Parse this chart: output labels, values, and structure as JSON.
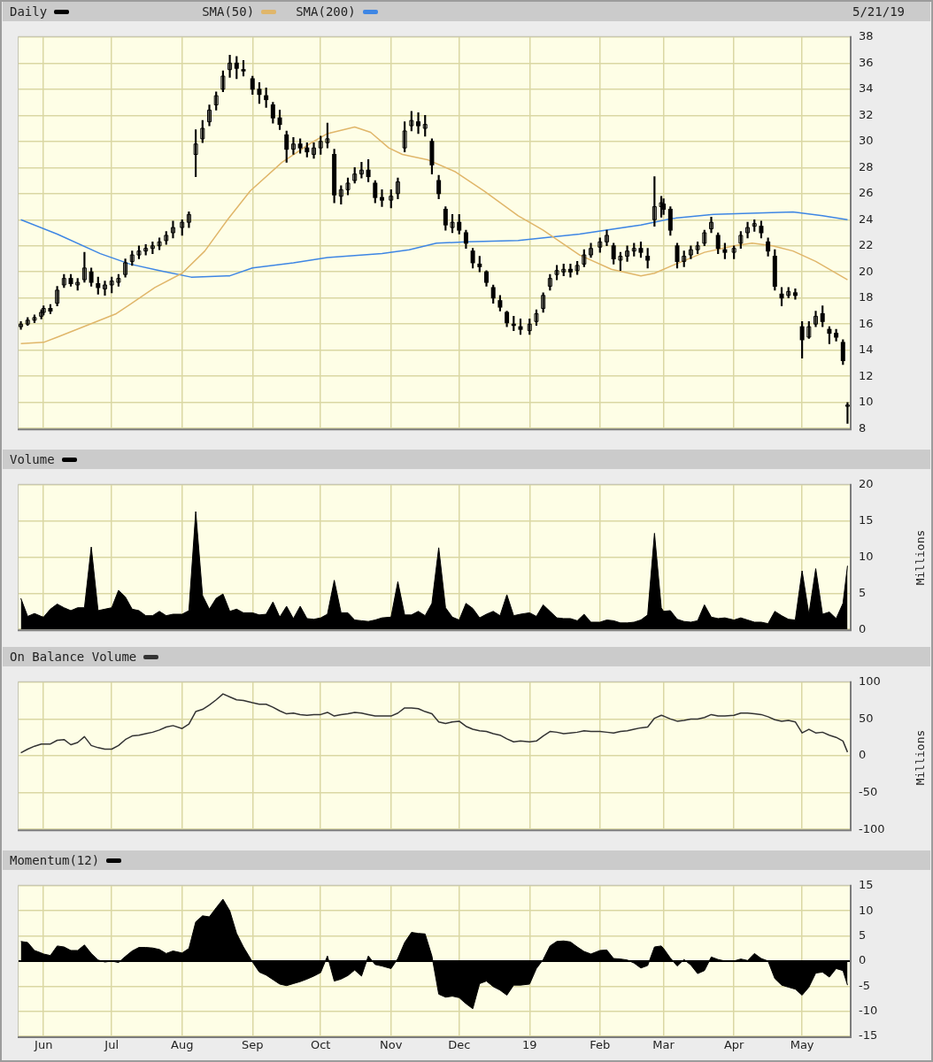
{
  "chart_data": [
    {
      "type": "candlestick",
      "legend": "top left",
      "grid": true,
      "tick_labels": "y",
      "annotations": [
        "5/21/19"
      ],
      "xlim": [
        "2018-05-21",
        "2019-05-22"
      ],
      "xticks": [
        {
          "value": "2018-06-01",
          "label": null
        },
        {
          "value": "2018-07-01",
          "label": null
        },
        {
          "value": "2018-08-01",
          "label": null
        },
        {
          "value": "2018-09-01",
          "label": null
        },
        {
          "value": "2018-10-01",
          "label": null
        },
        {
          "value": "2018-11-01",
          "label": null
        },
        {
          "value": "2018-12-01",
          "label": null
        },
        {
          "value": "2019-01-01",
          "label": null
        },
        {
          "value": "2019-02-01",
          "label": null
        },
        {
          "value": "2019-03-01",
          "label": null
        },
        {
          "value": "2019-04-01",
          "label": null
        },
        {
          "value": "2019-05-01",
          "label": null
        }
      ],
      "ylim": [
        8,
        38
      ],
      "yticks": [
        8,
        10,
        12,
        14,
        16,
        18,
        20,
        22,
        24,
        26,
        28,
        30,
        32,
        34,
        36,
        38
      ],
      "x": [
        "2018-05-22",
        "2018-05-25",
        "2018-05-28",
        "2018-05-31",
        "2018-06-01",
        "2018-06-04",
        "2018-06-07",
        "2018-06-10",
        "2018-06-13",
        "2018-06-16",
        "2018-06-19",
        "2018-06-22",
        "2018-06-25",
        "2018-06-28",
        "2018-07-01",
        "2018-07-04",
        "2018-07-07",
        "2018-07-10",
        "2018-07-13",
        "2018-07-16",
        "2018-07-19",
        "2018-07-22",
        "2018-07-25",
        "2018-07-28",
        "2018-08-01",
        "2018-08-04",
        "2018-08-07",
        "2018-08-10",
        "2018-08-13",
        "2018-08-16",
        "2018-08-19",
        "2018-08-22",
        "2018-08-25",
        "2018-08-28",
        "2018-09-01",
        "2018-09-04",
        "2018-09-07",
        "2018-09-10",
        "2018-09-13",
        "2018-09-16",
        "2018-09-19",
        "2018-09-22",
        "2018-09-25",
        "2018-09-28",
        "2018-10-01",
        "2018-10-04",
        "2018-10-07",
        "2018-10-10",
        "2018-10-13",
        "2018-10-16",
        "2018-10-19",
        "2018-10-22",
        "2018-10-25",
        "2018-10-28",
        "2018-11-01",
        "2018-11-04",
        "2018-11-07",
        "2018-11-10",
        "2018-11-13",
        "2018-11-16",
        "2018-11-19",
        "2018-11-22",
        "2018-11-25",
        "2018-11-28",
        "2018-12-01",
        "2018-12-04",
        "2018-12-07",
        "2018-12-10",
        "2018-12-13",
        "2018-12-16",
        "2018-12-19",
        "2018-12-22",
        "2018-12-25",
        "2018-12-28",
        "2019-01-01",
        "2019-01-04",
        "2019-01-07",
        "2019-01-10",
        "2019-01-13",
        "2019-01-16",
        "2019-01-19",
        "2019-01-22",
        "2019-01-25",
        "2019-01-28",
        "2019-02-01",
        "2019-02-04",
        "2019-02-07",
        "2019-02-10",
        "2019-02-13",
        "2019-02-16",
        "2019-02-19",
        "2019-02-22",
        "2019-02-25",
        "2019-02-28",
        "2019-03-01",
        "2019-03-04",
        "2019-03-07",
        "2019-03-10",
        "2019-03-13",
        "2019-03-16",
        "2019-03-19",
        "2019-03-22",
        "2019-03-25",
        "2019-03-28",
        "2019-04-01",
        "2019-04-04",
        "2019-04-07",
        "2019-04-10",
        "2019-04-13",
        "2019-04-16",
        "2019-04-19",
        "2019-04-22",
        "2019-04-25",
        "2019-04-28",
        "2019-05-01",
        "2019-05-04",
        "2019-05-07",
        "2019-05-10",
        "2019-05-13",
        "2019-05-16",
        "2019-05-19",
        "2019-05-21"
      ],
      "series": [
        {
          "name": "Daily",
          "color": "#000000",
          "ohlc": [
            [
              15.8,
              16.2,
              15.6,
              16.0
            ],
            [
              16.0,
              16.5,
              15.9,
              16.3
            ],
            [
              16.3,
              16.7,
              16.1,
              16.5
            ],
            [
              16.6,
              17.1,
              16.4,
              16.9
            ],
            [
              16.9,
              17.4,
              16.7,
              17.2
            ],
            [
              17.2,
              17.5,
              16.8,
              17.0
            ],
            [
              17.6,
              18.9,
              17.4,
              18.6
            ],
            [
              19.0,
              19.8,
              18.8,
              19.5
            ],
            [
              19.5,
              19.8,
              18.9,
              19.1
            ],
            [
              19.0,
              19.5,
              18.6,
              19.2
            ],
            [
              19.4,
              21.5,
              19.2,
              20.3
            ],
            [
              20.0,
              20.3,
              18.9,
              19.2
            ],
            [
              19.1,
              19.6,
              18.3,
              18.8
            ],
            [
              18.7,
              19.3,
              18.2,
              19.0
            ],
            [
              19.0,
              19.6,
              18.4,
              19.3
            ],
            [
              19.2,
              19.8,
              18.9,
              19.5
            ],
            [
              19.8,
              21.0,
              19.6,
              20.7
            ],
            [
              20.8,
              21.6,
              20.5,
              21.3
            ],
            [
              21.3,
              22.0,
              21.0,
              21.6
            ],
            [
              21.6,
              22.1,
              21.3,
              21.8
            ],
            [
              21.8,
              22.3,
              21.4,
              22.0
            ],
            [
              22.0,
              22.6,
              21.7,
              22.3
            ],
            [
              22.4,
              23.1,
              22.1,
              22.8
            ],
            [
              23.0,
              23.9,
              22.6,
              23.4
            ],
            [
              23.4,
              24.0,
              22.8,
              23.8
            ],
            [
              23.8,
              24.6,
              23.4,
              24.4
            ],
            [
              29.0,
              30.9,
              27.3,
              29.8
            ],
            [
              30.2,
              31.6,
              29.9,
              31.0
            ],
            [
              31.5,
              32.8,
              31.2,
              32.4
            ],
            [
              32.8,
              33.8,
              32.4,
              33.5
            ],
            [
              34.0,
              35.4,
              33.8,
              35.0
            ],
            [
              35.5,
              36.6,
              34.9,
              36.0
            ],
            [
              36.0,
              36.5,
              34.8,
              35.6
            ],
            [
              35.5,
              36.2,
              35.0,
              35.4
            ],
            [
              34.8,
              35.0,
              33.6,
              34.0
            ],
            [
              34.0,
              34.5,
              32.9,
              33.6
            ],
            [
              33.5,
              34.1,
              32.6,
              33.2
            ],
            [
              32.8,
              33.0,
              31.4,
              31.8
            ],
            [
              31.8,
              32.4,
              30.9,
              31.3
            ],
            [
              30.5,
              30.8,
              28.4,
              29.4
            ],
            [
              29.4,
              30.3,
              29.0,
              29.8
            ],
            [
              29.8,
              30.2,
              29.1,
              29.5
            ],
            [
              29.5,
              29.9,
              28.8,
              29.2
            ],
            [
              29.0,
              29.9,
              28.7,
              29.5
            ],
            [
              29.5,
              30.4,
              29.0,
              30.0
            ],
            [
              29.9,
              31.4,
              29.5,
              30.2
            ],
            [
              29.0,
              29.4,
              25.3,
              25.9
            ],
            [
              25.8,
              26.6,
              25.2,
              26.3
            ],
            [
              26.3,
              27.2,
              25.9,
              26.8
            ],
            [
              27.0,
              28.0,
              26.8,
              27.5
            ],
            [
              27.5,
              28.4,
              27.2,
              27.8
            ],
            [
              27.8,
              28.6,
              26.9,
              27.3
            ],
            [
              26.8,
              27.0,
              25.3,
              25.7
            ],
            [
              25.7,
              26.3,
              25.0,
              25.5
            ],
            [
              25.5,
              26.3,
              24.9,
              25.8
            ],
            [
              26.0,
              27.2,
              25.6,
              26.9
            ],
            [
              29.5,
              31.5,
              29.2,
              30.8
            ],
            [
              31.2,
              32.3,
              30.8,
              31.6
            ],
            [
              31.5,
              32.2,
              30.6,
              31.2
            ],
            [
              31.0,
              32.0,
              30.4,
              31.3
            ],
            [
              30.0,
              30.2,
              27.5,
              28.2
            ],
            [
              27.0,
              27.4,
              25.6,
              26.0
            ],
            [
              24.8,
              25.0,
              23.2,
              23.6
            ],
            [
              23.4,
              24.4,
              23.0,
              23.8
            ],
            [
              23.8,
              24.4,
              22.9,
              23.2
            ],
            [
              23.0,
              23.2,
              21.8,
              22.2
            ],
            [
              21.6,
              21.8,
              20.3,
              20.7
            ],
            [
              20.6,
              21.2,
              20.0,
              20.4
            ],
            [
              20.0,
              20.1,
              18.9,
              19.2
            ],
            [
              18.8,
              19.0,
              17.6,
              18.0
            ],
            [
              17.8,
              18.2,
              17.0,
              17.3
            ],
            [
              16.9,
              17.0,
              15.8,
              16.1
            ],
            [
              16.0,
              16.6,
              15.5,
              15.9
            ],
            [
              15.8,
              16.4,
              15.2,
              15.6
            ],
            [
              15.5,
              16.4,
              15.2,
              16.0
            ],
            [
              16.2,
              17.1,
              15.9,
              16.8
            ],
            [
              17.2,
              18.4,
              16.9,
              18.2
            ],
            [
              18.9,
              19.8,
              18.6,
              19.5
            ],
            [
              19.8,
              20.5,
              19.4,
              20.1
            ],
            [
              20.0,
              20.6,
              19.7,
              20.2
            ],
            [
              20.2,
              20.6,
              19.6,
              20.0
            ],
            [
              20.1,
              20.8,
              19.8,
              20.5
            ],
            [
              20.6,
              21.7,
              20.4,
              21.3
            ],
            [
              21.3,
              22.2,
              21.1,
              21.8
            ],
            [
              21.9,
              22.6,
              21.5,
              22.3
            ],
            [
              22.3,
              23.2,
              22.0,
              22.8
            ],
            [
              22.0,
              22.2,
              20.6,
              21.0
            ],
            [
              20.9,
              21.5,
              20.1,
              21.2
            ],
            [
              21.2,
              22.0,
              20.8,
              21.6
            ],
            [
              21.6,
              22.2,
              21.2,
              21.8
            ],
            [
              21.8,
              22.3,
              21.1,
              21.5
            ],
            [
              21.2,
              21.8,
              20.3,
              20.9
            ],
            [
              24.0,
              27.3,
              23.5,
              25.0
            ],
            [
              25.0,
              25.8,
              24.2,
              25.3
            ],
            [
              25.2,
              25.6,
              24.4,
              24.8
            ],
            [
              24.8,
              25.0,
              22.8,
              23.2
            ],
            [
              22.0,
              22.2,
              20.3,
              20.8
            ],
            [
              20.8,
              21.6,
              20.4,
              21.2
            ],
            [
              21.3,
              22.0,
              21.0,
              21.7
            ],
            [
              21.7,
              22.3,
              21.4,
              22.0
            ],
            [
              22.2,
              23.2,
              22.0,
              23.0
            ],
            [
              23.3,
              24.2,
              23.0,
              23.8
            ],
            [
              22.8,
              23.0,
              21.4,
              21.8
            ],
            [
              21.7,
              22.2,
              21.0,
              21.5
            ],
            [
              21.5,
              22.0,
              21.0,
              21.8
            ],
            [
              22.2,
              23.1,
              21.8,
              22.8
            ],
            [
              23.0,
              23.8,
              22.6,
              23.4
            ],
            [
              23.5,
              24.0,
              23.1,
              23.7
            ],
            [
              23.5,
              23.9,
              22.6,
              23.0
            ],
            [
              22.3,
              22.6,
              21.2,
              21.6
            ],
            [
              21.2,
              21.7,
              18.6,
              18.9
            ],
            [
              18.3,
              18.8,
              17.4,
              18.0
            ],
            [
              18.2,
              18.8,
              18.0,
              18.5
            ],
            [
              18.4,
              18.7,
              17.9,
              18.2
            ],
            [
              15.8,
              16.2,
              13.4,
              14.8
            ],
            [
              15.0,
              16.2,
              14.9,
              15.8
            ],
            [
              16.0,
              17.0,
              15.8,
              16.6
            ],
            [
              16.8,
              17.4,
              15.8,
              16.2
            ],
            [
              15.6,
              15.8,
              14.5,
              15.3
            ],
            [
              15.3,
              15.6,
              14.7,
              15.0
            ],
            [
              14.6,
              14.8,
              12.9,
              13.2
            ],
            [
              9.7,
              10.0,
              8.4,
              9.8
            ]
          ]
        },
        {
          "name": "SMA(50)",
          "type": "line",
          "color": "#e0b66a",
          "x": [
            "2018-05-22",
            "2018-06-01",
            "2018-06-07",
            "2018-06-20",
            "2018-07-03",
            "2018-07-09",
            "2018-07-20",
            "2018-08-01",
            "2018-08-11",
            "2018-08-21",
            "2018-08-31",
            "2018-09-14",
            "2018-09-27",
            "2018-10-04",
            "2018-10-16",
            "2018-10-23",
            "2018-10-31",
            "2018-11-06",
            "2018-11-17",
            "2018-11-29",
            "2018-12-12",
            "2018-12-27",
            "2019-01-07",
            "2019-01-23",
            "2019-02-06",
            "2019-02-19",
            "2019-02-25",
            "2019-03-05",
            "2019-03-19",
            "2019-04-01",
            "2019-04-09",
            "2019-04-18",
            "2019-04-27",
            "2019-05-07",
            "2019-05-21"
          ],
          "values": [
            14.5,
            14.6,
            15.0,
            15.9,
            16.8,
            17.5,
            18.8,
            19.9,
            21.6,
            24.0,
            26.2,
            28.4,
            29.9,
            30.6,
            31.1,
            30.7,
            29.5,
            29.0,
            28.6,
            27.7,
            26.2,
            24.3,
            23.2,
            21.3,
            20.2,
            19.7,
            19.9,
            20.5,
            21.5,
            22.0,
            22.2,
            22.0,
            21.6,
            20.8,
            19.4
          ]
        },
        {
          "name": "SMA(200)",
          "type": "line",
          "color": "#3e86e4",
          "x": [
            "2018-05-22",
            "2018-06-07",
            "2018-06-26",
            "2018-07-09",
            "2018-07-22",
            "2018-08-05",
            "2018-08-22",
            "2018-09-01",
            "2018-09-19",
            "2018-10-04",
            "2018-10-28",
            "2018-11-09",
            "2018-11-21",
            "2018-12-04",
            "2018-12-27",
            "2019-01-23",
            "2019-02-19",
            "2019-03-05",
            "2019-03-23",
            "2019-04-08",
            "2019-04-27",
            "2019-05-10",
            "2019-05-21"
          ],
          "values": [
            24.0,
            22.9,
            21.4,
            20.6,
            20.1,
            19.6,
            19.7,
            20.3,
            20.7,
            21.1,
            21.4,
            21.7,
            22.2,
            22.3,
            22.4,
            22.9,
            23.6,
            24.1,
            24.4,
            24.5,
            24.6,
            24.3,
            24.0
          ]
        }
      ]
    },
    {
      "type": "area",
      "legend": "top left",
      "grid": true,
      "tick_labels": "y",
      "ylabel": "Millions",
      "xlim": [
        "2018-05-21",
        "2019-05-22"
      ],
      "xticks": [
        {
          "value": "2018-06-01",
          "label": null
        },
        {
          "value": "2018-07-01",
          "label": null
        },
        {
          "value": "2018-08-01",
          "label": null
        },
        {
          "value": "2018-09-01",
          "label": null
        },
        {
          "value": "2018-10-01",
          "label": null
        },
        {
          "value": "2018-11-01",
          "label": null
        },
        {
          "value": "2018-12-01",
          "label": null
        },
        {
          "value": "2019-01-01",
          "label": null
        },
        {
          "value": "2019-02-01",
          "label": null
        },
        {
          "value": "2019-03-01",
          "label": null
        },
        {
          "value": "2019-04-01",
          "label": null
        },
        {
          "value": "2019-05-01",
          "label": null
        }
      ],
      "ylim": [
        0,
        20
      ],
      "yticks": [
        0,
        5,
        10,
        15,
        20
      ],
      "x": [
        "2018-05-22",
        "2018-05-25",
        "2018-05-28",
        "2018-05-31",
        "2018-06-01",
        "2018-06-04",
        "2018-06-07",
        "2018-06-10",
        "2018-06-13",
        "2018-06-16",
        "2018-06-19",
        "2018-06-22",
        "2018-06-25",
        "2018-06-28",
        "2018-07-01",
        "2018-07-04",
        "2018-07-07",
        "2018-07-10",
        "2018-07-13",
        "2018-07-16",
        "2018-07-19",
        "2018-07-22",
        "2018-07-25",
        "2018-07-28",
        "2018-08-01",
        "2018-08-04",
        "2018-08-07",
        "2018-08-10",
        "2018-08-13",
        "2018-08-16",
        "2018-08-19",
        "2018-08-22",
        "2018-08-25",
        "2018-08-28",
        "2018-09-01",
        "2018-09-04",
        "2018-09-07",
        "2018-09-10",
        "2018-09-13",
        "2018-09-16",
        "2018-09-19",
        "2018-09-22",
        "2018-09-25",
        "2018-09-28",
        "2018-10-01",
        "2018-10-04",
        "2018-10-07",
        "2018-10-10",
        "2018-10-13",
        "2018-10-16",
        "2018-10-19",
        "2018-10-22",
        "2018-10-25",
        "2018-10-28",
        "2018-11-01",
        "2018-11-04",
        "2018-11-07",
        "2018-11-10",
        "2018-11-13",
        "2018-11-16",
        "2018-11-19",
        "2018-11-22",
        "2018-11-25",
        "2018-11-28",
        "2018-12-01",
        "2018-12-04",
        "2018-12-07",
        "2018-12-10",
        "2018-12-13",
        "2018-12-16",
        "2018-12-19",
        "2018-12-22",
        "2018-12-25",
        "2018-12-28",
        "2019-01-01",
        "2019-01-04",
        "2019-01-07",
        "2019-01-10",
        "2019-01-13",
        "2019-01-16",
        "2019-01-19",
        "2019-01-22",
        "2019-01-25",
        "2019-01-28",
        "2019-02-01",
        "2019-02-04",
        "2019-02-07",
        "2019-02-10",
        "2019-02-13",
        "2019-02-16",
        "2019-02-19",
        "2019-02-22",
        "2019-02-25",
        "2019-02-28",
        "2019-03-01",
        "2019-03-04",
        "2019-03-07",
        "2019-03-10",
        "2019-03-13",
        "2019-03-16",
        "2019-03-19",
        "2019-03-22",
        "2019-03-25",
        "2019-03-28",
        "2019-04-01",
        "2019-04-04",
        "2019-04-07",
        "2019-04-10",
        "2019-04-13",
        "2019-04-16",
        "2019-04-19",
        "2019-04-22",
        "2019-04-25",
        "2019-04-28",
        "2019-05-01",
        "2019-05-04",
        "2019-05-07",
        "2019-05-10",
        "2019-05-13",
        "2019-05-16",
        "2019-05-19",
        "2019-05-21"
      ],
      "series": [
        {
          "name": "Volume",
          "color": "#000000",
          "values": [
            4.3,
            1.8,
            2.2,
            1.8,
            1.7,
            2.8,
            3.5,
            3.0,
            2.6,
            3.0,
            3.0,
            11.4,
            2.6,
            2.8,
            3.0,
            5.4,
            4.5,
            2.8,
            2.6,
            1.9,
            1.9,
            2.5,
            1.9,
            2.1,
            2.1,
            2.6,
            16.3,
            4.7,
            2.8,
            4.3,
            4.9,
            2.5,
            2.8,
            2.3,
            2.3,
            2.0,
            2.1,
            3.8,
            1.7,
            3.2,
            1.5,
            3.2,
            1.5,
            1.4,
            1.6,
            2.1,
            6.8,
            2.3,
            2.3,
            1.3,
            1.2,
            1.1,
            1.3,
            1.6,
            1.7,
            6.6,
            2.0,
            2.0,
            2.5,
            1.9,
            3.6,
            11.3,
            3.0,
            1.7,
            1.3,
            3.6,
            2.9,
            1.6,
            2.1,
            2.5,
            1.9,
            4.8,
            1.9,
            2.1,
            2.3,
            1.8,
            3.4,
            2.5,
            1.6,
            1.5,
            1.5,
            1.2,
            2.1,
            1.0,
            1.0,
            1.3,
            1.2,
            0.9,
            0.9,
            1.0,
            1.3,
            2.0,
            13.3,
            3.0,
            2.5,
            2.6,
            1.4,
            1.1,
            1.0,
            1.2,
            3.4,
            1.7,
            1.5,
            1.6,
            1.3,
            1.6,
            1.3,
            1.0,
            1.0,
            0.8,
            2.5,
            1.9,
            1.4,
            1.3,
            8.1,
            2.1,
            8.4,
            2.1,
            2.4,
            1.5,
            3.6,
            8.8
          ]
        }
      ]
    },
    {
      "type": "line",
      "legend": "top left",
      "grid": true,
      "tick_labels": "y",
      "ylabel": "Millions",
      "xlim": [
        "2018-05-21",
        "2019-05-22"
      ],
      "xticks": [
        {
          "value": "2018-06-01",
          "label": null
        },
        {
          "value": "2018-07-01",
          "label": null
        },
        {
          "value": "2018-08-01",
          "label": null
        },
        {
          "value": "2018-09-01",
          "label": null
        },
        {
          "value": "2018-10-01",
          "label": null
        },
        {
          "value": "2018-11-01",
          "label": null
        },
        {
          "value": "2018-12-01",
          "label": null
        },
        {
          "value": "2019-01-01",
          "label": null
        },
        {
          "value": "2019-02-01",
          "label": null
        },
        {
          "value": "2019-03-01",
          "label": null
        },
        {
          "value": "2019-04-01",
          "label": null
        },
        {
          "value": "2019-05-01",
          "label": null
        }
      ],
      "ylim": [
        -100,
        100
      ],
      "yticks": [
        -100,
        -50,
        0,
        50,
        100
      ],
      "x": [
        "2018-05-22",
        "2018-05-25",
        "2018-05-28",
        "2018-05-31",
        "2018-06-01",
        "2018-06-04",
        "2018-06-07",
        "2018-06-10",
        "2018-06-13",
        "2018-06-16",
        "2018-06-19",
        "2018-06-22",
        "2018-06-25",
        "2018-06-28",
        "2018-07-01",
        "2018-07-04",
        "2018-07-07",
        "2018-07-10",
        "2018-07-13",
        "2018-07-16",
        "2018-07-19",
        "2018-07-22",
        "2018-07-25",
        "2018-07-28",
        "2018-08-01",
        "2018-08-04",
        "2018-08-07",
        "2018-08-10",
        "2018-08-13",
        "2018-08-16",
        "2018-08-19",
        "2018-08-22",
        "2018-08-25",
        "2018-08-28",
        "2018-09-01",
        "2018-09-04",
        "2018-09-07",
        "2018-09-10",
        "2018-09-13",
        "2018-09-16",
        "2018-09-19",
        "2018-09-22",
        "2018-09-25",
        "2018-09-28",
        "2018-10-01",
        "2018-10-04",
        "2018-10-07",
        "2018-10-10",
        "2018-10-13",
        "2018-10-16",
        "2018-10-19",
        "2018-10-22",
        "2018-10-25",
        "2018-10-28",
        "2018-11-01",
        "2018-11-04",
        "2018-11-07",
        "2018-11-10",
        "2018-11-13",
        "2018-11-16",
        "2018-11-19",
        "2018-11-22",
        "2018-11-25",
        "2018-11-28",
        "2018-12-01",
        "2018-12-04",
        "2018-12-07",
        "2018-12-10",
        "2018-12-13",
        "2018-12-16",
        "2018-12-19",
        "2018-12-22",
        "2018-12-25",
        "2018-12-28",
        "2019-01-01",
        "2019-01-04",
        "2019-01-07",
        "2019-01-10",
        "2019-01-13",
        "2019-01-16",
        "2019-01-19",
        "2019-01-22",
        "2019-01-25",
        "2019-01-28",
        "2019-02-01",
        "2019-02-04",
        "2019-02-07",
        "2019-02-10",
        "2019-02-13",
        "2019-02-16",
        "2019-02-19",
        "2019-02-22",
        "2019-02-25",
        "2019-02-28",
        "2019-03-01",
        "2019-03-04",
        "2019-03-07",
        "2019-03-10",
        "2019-03-13",
        "2019-03-16",
        "2019-03-19",
        "2019-03-22",
        "2019-03-25",
        "2019-03-28",
        "2019-04-01",
        "2019-04-04",
        "2019-04-07",
        "2019-04-10",
        "2019-04-13",
        "2019-04-16",
        "2019-04-19",
        "2019-04-22",
        "2019-04-25",
        "2019-04-28",
        "2019-05-01",
        "2019-05-04",
        "2019-05-07",
        "2019-05-10",
        "2019-05-13",
        "2019-05-16",
        "2019-05-19",
        "2019-05-21"
      ],
      "series": [
        {
          "name": "On Balance Volume",
          "color": "#333333",
          "values": [
            4,
            9,
            13,
            16,
            16,
            16,
            21,
            22,
            15,
            18,
            26,
            14,
            11,
            9,
            9,
            14,
            22,
            27,
            28,
            30,
            32,
            35,
            39,
            41,
            37,
            43,
            60,
            63,
            69,
            76,
            84,
            80,
            76,
            75,
            72,
            70,
            70,
            66,
            61,
            57,
            58,
            56,
            55,
            56,
            56,
            59,
            54,
            56,
            57,
            59,
            58,
            56,
            54,
            54,
            54,
            58,
            65,
            65,
            64,
            60,
            57,
            46,
            44,
            46,
            47,
            40,
            36,
            34,
            33,
            30,
            28,
            23,
            19,
            20,
            19,
            20,
            27,
            33,
            32,
            30,
            31,
            32,
            34,
            33,
            33,
            32,
            31,
            33,
            34,
            36,
            38,
            39,
            51,
            55,
            54,
            50,
            47,
            48,
            50,
            50,
            52,
            56,
            54,
            54,
            55,
            58,
            58,
            57,
            56,
            53,
            49,
            47,
            48,
            46,
            31,
            36,
            31,
            32,
            28,
            25,
            20,
            5
          ]
        }
      ]
    },
    {
      "type": "area",
      "legend": "top left",
      "grid": true,
      "xlim": [
        "2018-05-21",
        "2019-05-22"
      ],
      "xticks": [
        {
          "value": "2018-06-01",
          "label": "Jun"
        },
        {
          "value": "2018-07-01",
          "label": "Jul"
        },
        {
          "value": "2018-08-01",
          "label": "Aug"
        },
        {
          "value": "2018-09-01",
          "label": "Sep"
        },
        {
          "value": "2018-10-01",
          "label": "Oct"
        },
        {
          "value": "2018-11-01",
          "label": "Nov"
        },
        {
          "value": "2018-12-01",
          "label": "Dec"
        },
        {
          "value": "2019-01-01",
          "label": "19"
        },
        {
          "value": "2019-02-01",
          "label": "Feb"
        },
        {
          "value": "2019-03-01",
          "label": "Mar"
        },
        {
          "value": "2019-04-01",
          "label": "Apr"
        },
        {
          "value": "2019-05-01",
          "label": "May"
        }
      ],
      "ylim": [
        -15,
        15
      ],
      "yticks": [
        -15,
        -10,
        -5,
        0,
        5,
        10,
        15
      ],
      "ref_lines": [
        {
          "axis": "y",
          "value": 0,
          "color": "#000000"
        }
      ],
      "x": [
        "2018-05-22",
        "2018-05-25",
        "2018-05-28",
        "2018-05-31",
        "2018-06-01",
        "2018-06-04",
        "2018-06-07",
        "2018-06-10",
        "2018-06-13",
        "2018-06-16",
        "2018-06-19",
        "2018-06-22",
        "2018-06-25",
        "2018-06-28",
        "2018-07-01",
        "2018-07-04",
        "2018-07-07",
        "2018-07-10",
        "2018-07-13",
        "2018-07-16",
        "2018-07-19",
        "2018-07-22",
        "2018-07-25",
        "2018-07-28",
        "2018-08-01",
        "2018-08-04",
        "2018-08-07",
        "2018-08-10",
        "2018-08-13",
        "2018-08-16",
        "2018-08-19",
        "2018-08-22",
        "2018-08-25",
        "2018-08-28",
        "2018-09-01",
        "2018-09-04",
        "2018-09-07",
        "2018-09-10",
        "2018-09-13",
        "2018-09-16",
        "2018-09-19",
        "2018-09-22",
        "2018-09-25",
        "2018-09-28",
        "2018-10-01",
        "2018-10-04",
        "2018-10-07",
        "2018-10-10",
        "2018-10-13",
        "2018-10-16",
        "2018-10-19",
        "2018-10-22",
        "2018-10-25",
        "2018-10-28",
        "2018-11-01",
        "2018-11-04",
        "2018-11-07",
        "2018-11-10",
        "2018-11-13",
        "2018-11-16",
        "2018-11-19",
        "2018-11-22",
        "2018-11-25",
        "2018-11-28",
        "2018-12-01",
        "2018-12-04",
        "2018-12-07",
        "2018-12-10",
        "2018-12-13",
        "2018-12-16",
        "2018-12-19",
        "2018-12-22",
        "2018-12-25",
        "2018-12-28",
        "2019-01-01",
        "2019-01-04",
        "2019-01-07",
        "2019-01-10",
        "2019-01-13",
        "2019-01-16",
        "2019-01-19",
        "2019-01-22",
        "2019-01-25",
        "2019-01-28",
        "2019-02-01",
        "2019-02-04",
        "2019-02-07",
        "2019-02-10",
        "2019-02-13",
        "2019-02-16",
        "2019-02-19",
        "2019-02-22",
        "2019-02-25",
        "2019-02-28",
        "2019-03-01",
        "2019-03-04",
        "2019-03-07",
        "2019-03-10",
        "2019-03-13",
        "2019-03-16",
        "2019-03-19",
        "2019-03-22",
        "2019-03-25",
        "2019-03-28",
        "2019-04-01",
        "2019-04-04",
        "2019-04-07",
        "2019-04-10",
        "2019-04-13",
        "2019-04-16",
        "2019-04-19",
        "2019-04-22",
        "2019-04-25",
        "2019-04-28",
        "2019-05-01",
        "2019-05-04",
        "2019-05-07",
        "2019-05-10",
        "2019-05-13",
        "2019-05-16",
        "2019-05-19",
        "2019-05-21"
      ],
      "series": [
        {
          "name": "Momentum(12)",
          "color": "#000000",
          "values": [
            3.9,
            3.7,
            2.1,
            1.6,
            1.4,
            1.1,
            3.0,
            2.8,
            2.1,
            2.1,
            3.2,
            1.5,
            0.2,
            -0.2,
            0,
            -0.3,
            0.9,
            2.0,
            2.7,
            2.7,
            2.6,
            2.3,
            1.5,
            2.0,
            1.6,
            2.5,
            7.8,
            9.0,
            8.8,
            10.6,
            12.3,
            10,
            5.5,
            2.8,
            -0.2,
            -2.2,
            -2.8,
            -3.7,
            -4.6,
            -4.9,
            -4.5,
            -4.1,
            -3.6,
            -3.0,
            -2.3,
            1.0,
            -4.0,
            -3.6,
            -2.9,
            -1.8,
            -3.0,
            1.0,
            -0.7,
            -1.0,
            -1.5,
            0.5,
            3.7,
            5.7,
            5.5,
            5.4,
            1.0,
            -6.6,
            -7.2,
            -7.0,
            -7.3,
            -8.5,
            -9.5,
            -4.5,
            -4.0,
            -5.1,
            -5.8,
            -6.8,
            -4.8,
            -4.8,
            -4.6,
            -1.5,
            0.3,
            3.0,
            3.9,
            4.0,
            3.8,
            2.8,
            1.9,
            1.4,
            2.1,
            2.2,
            0.5,
            0.4,
            0.2,
            -0.4,
            -1.4,
            -0.9,
            2.8,
            3.0,
            2.5,
            0.6,
            -1.0,
            0.3,
            -0.8,
            -2.5,
            -1.9,
            0.8,
            0.3,
            0.0,
            0.0,
            0.4,
            0.1,
            1.5,
            0.5,
            0.0,
            -3.5,
            -4.8,
            -5.2,
            -5.6,
            -6.8,
            -5.2,
            -2.4,
            -2.2,
            -3.2,
            -1.5,
            -1.9,
            -4.8
          ]
        }
      ]
    }
  ]
}
